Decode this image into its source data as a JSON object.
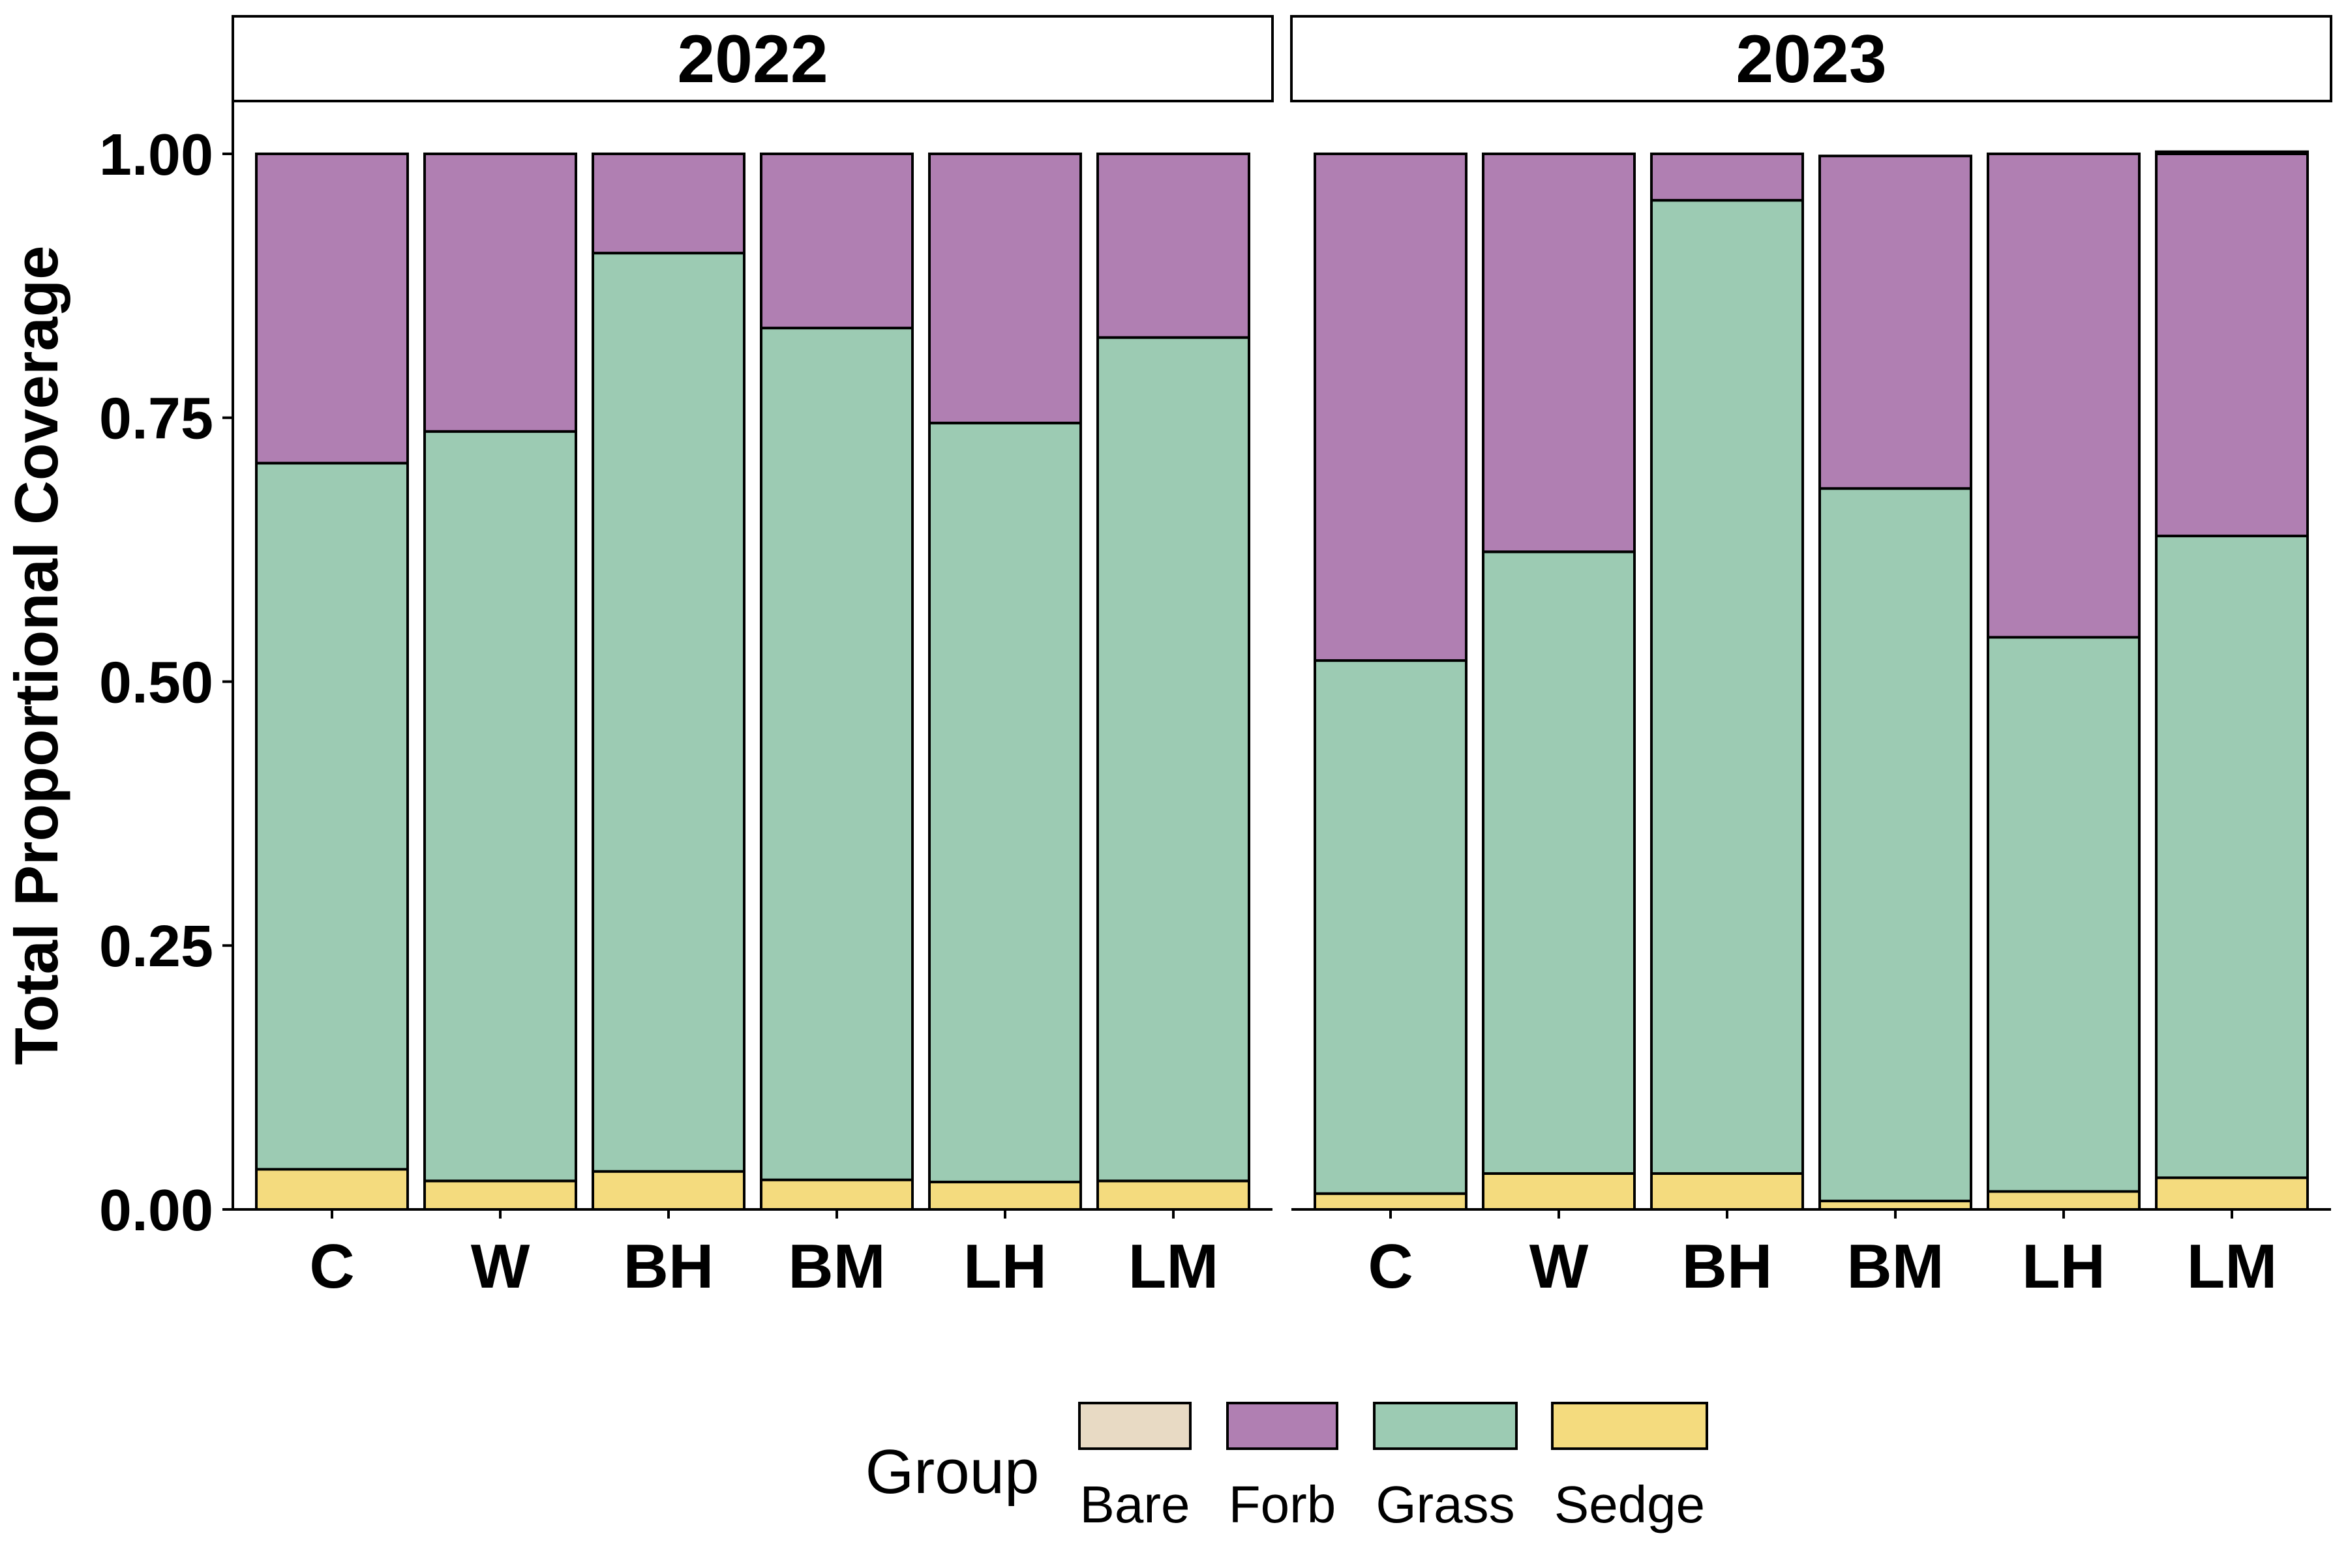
{
  "chart_data": {
    "type": "bar",
    "stacked": true,
    "ylabel": "Total Proportional Coverage",
    "xlabel": "",
    "ylim": [
      0,
      1.05
    ],
    "yticks": [
      "0.00",
      "0.25",
      "0.50",
      "0.75",
      "1.00"
    ],
    "categories": [
      "C",
      "W",
      "BH",
      "BM",
      "LH",
      "LM"
    ],
    "legend": {
      "title": "Group",
      "position": "bottom",
      "entries": [
        "Bare",
        "Forb",
        "Grass",
        "Sedge"
      ]
    },
    "colors": {
      "Bare": "#E8DAC4",
      "Forb": "#B07FB2",
      "Grass": "#9CCBB3",
      "Sedge": "#F4DB7E"
    },
    "stack_order_bottom_to_top": [
      "Sedge",
      "Grass",
      "Forb",
      "Bare"
    ],
    "panels": [
      {
        "label": "2022",
        "series": [
          {
            "name": "Sedge",
            "values": [
              0.038,
              0.027,
              0.036,
              0.028,
              0.026,
              0.027
            ]
          },
          {
            "name": "Grass",
            "values": [
              0.669,
              0.71,
              0.87,
              0.807,
              0.719,
              0.799
            ]
          },
          {
            "name": "Forb",
            "values": [
              0.293,
              0.263,
              0.094,
              0.165,
              0.255,
              0.174
            ]
          },
          {
            "name": "Bare",
            "values": [
              0,
              0,
              0,
              0,
              0,
              0
            ]
          }
        ]
      },
      {
        "label": "2023",
        "series": [
          {
            "name": "Sedge",
            "values": [
              0.015,
              0.034,
              0.034,
              0.008,
              0.017,
              0.03
            ]
          },
          {
            "name": "Grass",
            "values": [
              0.505,
              0.589,
              0.922,
              0.675,
              0.525,
              0.608
            ]
          },
          {
            "name": "Forb",
            "values": [
              0.48,
              0.377,
              0.044,
              0.315,
              0.458,
              0.362
            ]
          },
          {
            "name": "Bare",
            "values": [
              0,
              0,
              0,
              0,
              0,
              0.002
            ]
          }
        ]
      }
    ]
  }
}
